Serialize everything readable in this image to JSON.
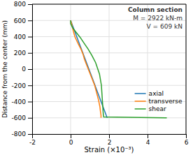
{
  "chart_data": {
    "type": "line",
    "annotations": [
      "Column section",
      "M = 2922 kN-m",
      "V = 609 kN"
    ],
    "xlabel": "Strain (×10⁻³)",
    "ylabel": "Distance from the center (mm)",
    "xlim": [
      -2,
      6
    ],
    "ylim": [
      -800,
      800
    ],
    "xticks": [
      -2,
      0,
      2,
      4,
      6
    ],
    "yticks": [
      -800,
      -600,
      -400,
      -200,
      0,
      200,
      400,
      600,
      800
    ],
    "grid": true,
    "legend": "lower right",
    "series": [
      {
        "name": "axial",
        "x": [
          0.0,
          0.0,
          1.9,
          1.9
        ],
        "values": [
          600,
          600,
          -600,
          -600
        ]
      },
      {
        "name": "transverse",
        "x": [
          0.0,
          0.05,
          0.1,
          0.15,
          0.22,
          0.38,
          0.55,
          0.65,
          0.72,
          0.85,
          1.05,
          1.25,
          1.45,
          1.52,
          1.55,
          1.58,
          1.58
        ],
        "values": [
          600,
          560,
          510,
          460,
          400,
          320,
          240,
          180,
          120,
          40,
          -80,
          -200,
          -380,
          -460,
          -520,
          -570,
          -600
        ]
      },
      {
        "name": "shear",
        "x": [
          0.0,
          0.0,
          0.1,
          0.3,
          0.5,
          0.7,
          0.9,
          1.1,
          1.3,
          1.5,
          1.6,
          1.65,
          1.68,
          1.7,
          1.72,
          4.95,
          5.0
        ],
        "values": [
          600,
          560,
          510,
          450,
          390,
          320,
          250,
          170,
          80,
          -60,
          -200,
          -380,
          -490,
          -560,
          -590,
          -600,
          -600
        ]
      }
    ]
  }
}
